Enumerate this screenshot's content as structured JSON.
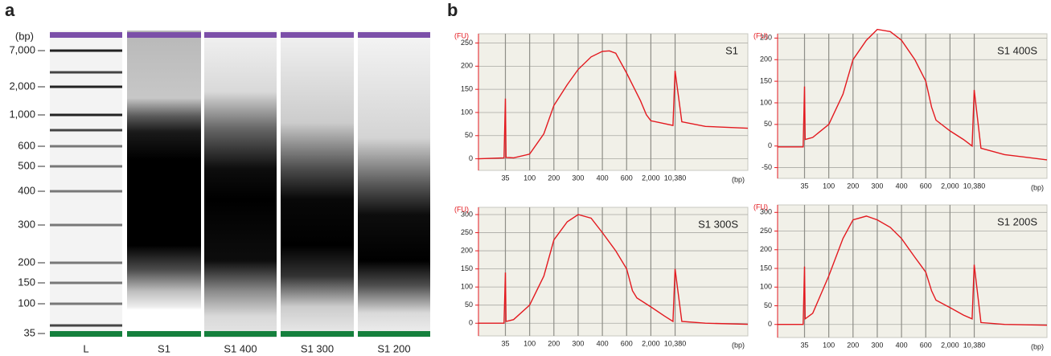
{
  "chart_data": [
    {
      "type": "gel",
      "panel_label": "a",
      "y_label": "(bp)",
      "categories": [
        "L",
        "S1",
        "S1 400",
        "S1 300",
        "S1 200"
      ],
      "yticks": [
        {
          "value": 7000,
          "label": "7,000"
        },
        {
          "value": 2000,
          "label": "2,000"
        },
        {
          "value": 1000,
          "label": "1,000"
        },
        600,
        500,
        400,
        300,
        200,
        150,
        100,
        35
      ]
    },
    {
      "type": "line",
      "panel_label": "b",
      "title": "S1",
      "y_label": "(FU)",
      "x_label": "(bp)",
      "x": [
        20,
        34,
        35,
        36,
        50,
        100,
        150,
        200,
        250,
        300,
        350,
        400,
        450,
        500,
        600,
        800,
        1200,
        1600,
        2000,
        5000,
        9000,
        10380,
        12000,
        20000,
        50000
      ],
      "series": [
        {
          "color": "#e3191f",
          "values": [
            0,
            2,
            130,
            3,
            2,
            10,
            54,
            115,
            160,
            193,
            220,
            232,
            233,
            228,
            185,
            160,
            125,
            95,
            82,
            76,
            72,
            190,
            80,
            70,
            66
          ]
        }
      ],
      "xlim": [
        20,
        50000
      ],
      "xticks": [
        35,
        100,
        200,
        300,
        400,
        600,
        {
          "value": 2000,
          "label": "2,000"
        },
        {
          "value": 10380,
          "label": "10,380"
        }
      ],
      "ylim": [
        -25,
        270
      ],
      "yticks": [
        0,
        50,
        100,
        150,
        200,
        250
      ]
    },
    {
      "type": "line",
      "title": "S1 400S",
      "y_label": "(FU)",
      "x_label": "(bp)",
      "x": [
        20,
        34,
        35,
        36,
        50,
        100,
        150,
        200,
        250,
        300,
        350,
        400,
        500,
        600,
        800,
        1000,
        2000,
        5000,
        9000,
        10380,
        12000,
        20000,
        50000
      ],
      "series": [
        {
          "color": "#e3191f",
          "values": [
            -2,
            -2,
            138,
            15,
            20,
            50,
            120,
            200,
            245,
            270,
            265,
            245,
            200,
            150,
            90,
            60,
            35,
            15,
            0,
            130,
            -5,
            -20,
            -32
          ]
        }
      ],
      "xlim": [
        20,
        50000
      ],
      "xticks": [
        35,
        100,
        200,
        300,
        400,
        600,
        {
          "value": 2000,
          "label": "2,000"
        },
        {
          "value": 10380,
          "label": "10,380"
        }
      ],
      "ylim": [
        -75,
        260
      ],
      "yticks": [
        -50,
        0,
        50,
        100,
        150,
        200,
        250
      ]
    },
    {
      "type": "line",
      "title": "S1 300S",
      "y_label": "(FU)",
      "x_label": "(bp)",
      "x": [
        20,
        34,
        35,
        36,
        50,
        100,
        150,
        200,
        250,
        300,
        350,
        400,
        500,
        600,
        800,
        1000,
        2000,
        5000,
        9000,
        10380,
        12000,
        20000,
        50000
      ],
      "series": [
        {
          "color": "#e3191f",
          "values": [
            0,
            0,
            140,
            5,
            10,
            50,
            130,
            230,
            280,
            300,
            290,
            250,
            200,
            150,
            90,
            70,
            45,
            20,
            5,
            150,
            5,
            0,
            -3
          ]
        }
      ],
      "xlim": [
        20,
        50000
      ],
      "xticks": [
        35,
        100,
        200,
        300,
        400,
        600,
        {
          "value": 2000,
          "label": "2,000"
        },
        {
          "value": 10380,
          "label": "10,380"
        }
      ],
      "ylim": [
        -35,
        320
      ],
      "yticks": [
        0,
        50,
        100,
        150,
        200,
        250,
        300
      ]
    },
    {
      "type": "line",
      "title": "S1 200S",
      "y_label": "(FU)",
      "x_label": "(bp)",
      "x": [
        20,
        34,
        35,
        36,
        50,
        100,
        150,
        200,
        250,
        300,
        350,
        400,
        500,
        600,
        800,
        1000,
        2000,
        5000,
        9000,
        10380,
        12000,
        20000,
        50000
      ],
      "series": [
        {
          "color": "#e3191f",
          "values": [
            0,
            0,
            155,
            15,
            30,
            130,
            230,
            280,
            290,
            280,
            260,
            230,
            180,
            140,
            90,
            65,
            45,
            25,
            15,
            160,
            5,
            0,
            -2
          ]
        }
      ],
      "xlim": [
        20,
        50000
      ],
      "xticks": [
        35,
        100,
        200,
        300,
        400,
        600,
        {
          "value": 2000,
          "label": "2,000"
        },
        {
          "value": 10380,
          "label": "10,380"
        }
      ],
      "ylim": [
        -35,
        320
      ],
      "yticks": [
        0,
        50,
        100,
        150,
        200,
        250,
        300
      ]
    }
  ]
}
